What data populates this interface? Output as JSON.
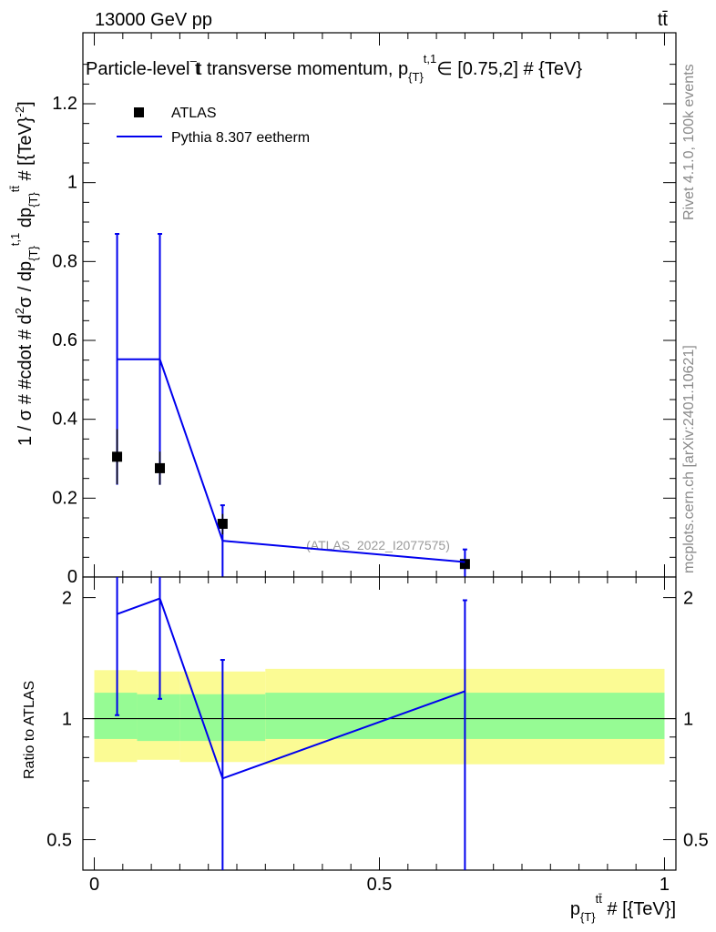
{
  "header": {
    "left": "13000 GeV pp",
    "right": "tt̄"
  },
  "side_labels": {
    "rivet": "Rivet 4.1.0,  100k events",
    "mcplots": "mcplots.cern.ch [arXiv:2401.10621]"
  },
  "chart_data": [
    {
      "type": "line",
      "panel": "main",
      "title": "Particle-level t̄t transverse momentum, p_{T}^{t,1} ∈ [0.75,2] # {TeV}",
      "xlabel": "p_{T}^{tt̄} # [{TeV}]",
      "ylabel": "1 / σ # #cdot # d²σ / dp_{T}^{t,1} dp_{T}^{tt̄} # [{TeV}⁻²]",
      "xlim": [
        -0.02,
        1.02
      ],
      "ylim": [
        0,
        1.38
      ],
      "yticks": [
        0,
        0.2,
        0.4,
        0.6,
        0.8,
        1,
        1.2
      ],
      "ytick_labels": [
        "0",
        "0.2",
        "0.4",
        "0.6",
        "0.8",
        "1",
        "1.2"
      ],
      "watermark": "(ATLAS_2022_I2077575)",
      "legend": [
        "ATLAS",
        "Pythia 8.307 eetherm"
      ],
      "bin_edges": [
        0,
        0.04,
        0.11,
        0.225,
        0.3,
        1.0
      ],
      "series": [
        {
          "name": "ATLAS",
          "kind": "points",
          "x": [
            0.04,
            0.115,
            0.225,
            0.65
          ],
          "y": [
            0.305,
            0.276,
            0.135,
            0.033
          ],
          "err_low": [
            0.07,
            0.042,
            0.027,
            0.008
          ],
          "err_high": [
            0.07,
            0.042,
            0.025,
            0.008
          ]
        },
        {
          "name": "Pythia 8.307 eetherm",
          "kind": "line",
          "x": [
            0.04,
            0.115,
            0.225,
            0.65
          ],
          "y": [
            0.552,
            0.552,
            0.092,
            0.038
          ],
          "err_low": [
            0.318,
            0.318,
            0.095,
            0.038
          ],
          "err_high": [
            0.318,
            0.318,
            0.09,
            0.032
          ]
        }
      ]
    },
    {
      "type": "line",
      "panel": "ratio",
      "ylabel": "Ratio to ATLAS",
      "xlim": [
        -0.02,
        1.02
      ],
      "ylim": [
        0.42,
        2.25
      ],
      "ylog": true,
      "yticks": [
        0.5,
        1,
        2
      ],
      "ytick_labels": [
        "0.5",
        "1",
        "2"
      ],
      "xticks": [
        0,
        0.5,
        1
      ],
      "xtick_labels": [
        "0",
        "0.5",
        "1"
      ],
      "bands": {
        "bin_edges": [
          0,
          0.075,
          0.15,
          0.3,
          1.0
        ],
        "yellow_low": [
          0.78,
          0.79,
          0.78,
          0.77
        ],
        "yellow_high": [
          1.32,
          1.31,
          1.31,
          1.33
        ],
        "green_low": [
          0.89,
          0.88,
          0.88,
          0.89
        ],
        "green_high": [
          1.16,
          1.15,
          1.15,
          1.16
        ]
      },
      "series": [
        {
          "name": "Pythia / ATLAS",
          "x": [
            0.04,
            0.115,
            0.225,
            0.65
          ],
          "y": [
            1.82,
            1.99,
            0.71,
            1.17
          ],
          "err_low": [
            1.02,
            1.12,
            0.3,
            0.3
          ],
          "err_high": [
            2.4,
            2.4,
            1.4,
            1.97
          ]
        }
      ]
    }
  ]
}
